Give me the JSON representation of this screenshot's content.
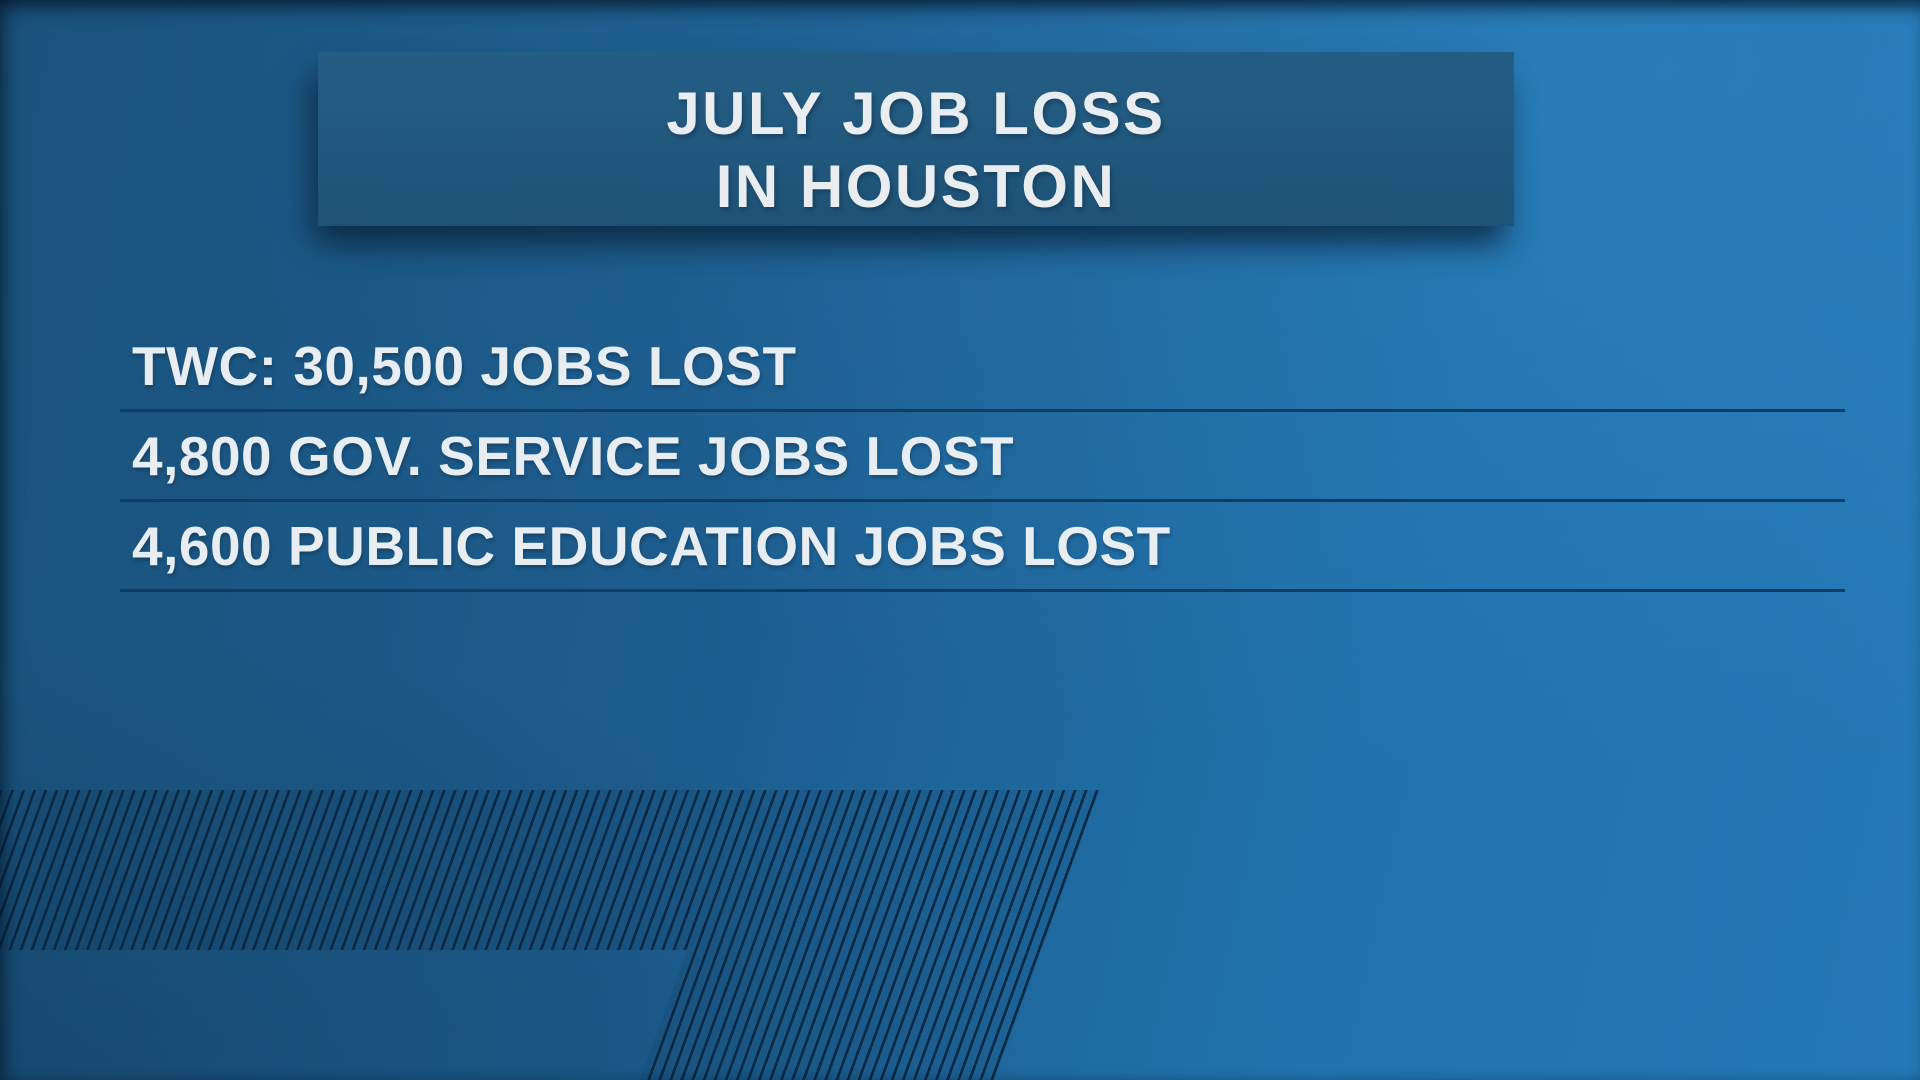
{
  "title": {
    "line1": "JULY JOB LOSS",
    "line2": "IN HOUSTON"
  },
  "stats": [
    {
      "label": "TWC: 30,500 JOBS LOST",
      "source": "TWC",
      "value": 30500
    },
    {
      "label": "4,800 GOV. SERVICE JOBS LOST",
      "source": "GOV. SERVICE",
      "value": 4800
    },
    {
      "label": "4,600 PUBLIC EDUCATION JOBS LOST",
      "source": "PUBLIC EDUCATION",
      "value": 4600
    }
  ],
  "chart_data": {
    "type": "table",
    "title": "JULY JOB LOSS IN HOUSTON",
    "rows": [
      {
        "category": "TWC (total jobs lost)",
        "value": 30500
      },
      {
        "category": "Gov. service jobs lost",
        "value": 4800
      },
      {
        "category": "Public education jobs lost",
        "value": 4600
      }
    ]
  },
  "colors": {
    "background_left": "#1a527c",
    "background_right": "#2379b6",
    "banner": "#20567c",
    "text": "#e9edf0",
    "separator_line": "#113d63",
    "stripe": "#092540"
  }
}
